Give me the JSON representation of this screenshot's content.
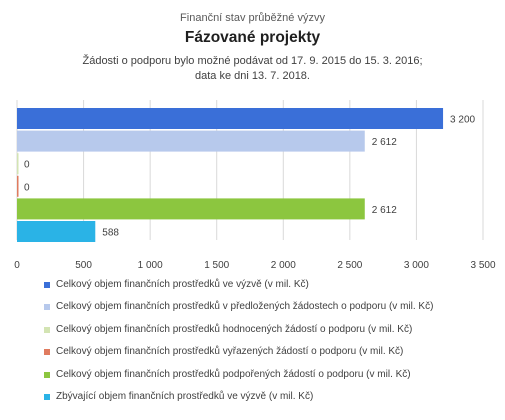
{
  "chart_data": {
    "type": "bar",
    "orientation": "horizontal",
    "title_top": "Finanční stav průběžné výzvy",
    "title": "Fázované projekty",
    "subtitle_lines": [
      "Žádosti o podporu bylo možné  podávat od 17. 9. 2015 do 15. 3. 2016;",
      "data ke dni 13. 7. 2018."
    ],
    "xlim": [
      0,
      3500
    ],
    "x_ticks": [
      0,
      500,
      1000,
      1500,
      2000,
      2500,
      3000,
      3500
    ],
    "x_tick_labels": [
      "0",
      "500",
      "1 000",
      "1 500",
      "2 000",
      "2 500",
      "3 000",
      "3 500"
    ],
    "grid": "vertical",
    "legend_position": "bottom",
    "series": [
      {
        "name": "Celkový objem finančních prostředků ve výzvě (v mil. Kč)",
        "value": 3200,
        "label": "3 200",
        "color": "#3a6fd8"
      },
      {
        "name": "Celkový objem finančních prostředků v předložených žádostech o podporu (v mil. Kč)",
        "value": 2612,
        "label": "2 612",
        "color": "#b7c9ec"
      },
      {
        "name": "Celkový objem finančních prostředků hodnocených žádostí o podporu (v mil. Kč)",
        "value": 0,
        "label": "0",
        "color": "#d3e4b3"
      },
      {
        "name": "Celkový objem finančních prostředků vyřazených žádostí o podporu (v mil. Kč)",
        "value": 0,
        "label": "0",
        "color": "#e07b5f"
      },
      {
        "name": "Celkový objem finančních prostředků podpořených žádostí o podporu (v mil. Kč)",
        "value": 2612,
        "label": "2 612",
        "color": "#8cc63f"
      },
      {
        "name": "Zbývající objem finančních prostředků ve výzvě (v mil. Kč)",
        "value": 588,
        "label": "588",
        "color": "#2ab3e6"
      }
    ]
  }
}
